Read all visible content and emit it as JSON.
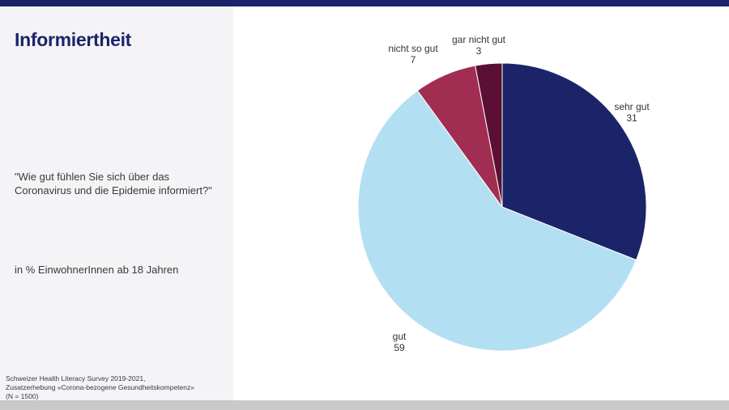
{
  "slide": {
    "title": "Informiertheit",
    "question_line1": "\"Wie gut fühlen Sie sich über das",
    "question_line2": "Coronavirus und die Epidemie informiert?\"",
    "unit_note": "in % EinwohnerInnen ab 18 Jahren",
    "source_line1": "Schweizer Health Literacy Survey 2019-2021,",
    "source_line2": "Zusatzerhebung «Corona-bezogene Gesundheitskompetenz»",
    "source_line3": "(N = 1500)"
  },
  "colors": {
    "header_bar": "#1b2469",
    "title": "#1b2469",
    "left_panel": "#f4f3f6"
  },
  "chart_data": {
    "type": "pie",
    "title": "",
    "start": "12 o'clock, clockwise",
    "slices": [
      {
        "label": "sehr gut",
        "value": 31,
        "color": "#1b2469"
      },
      {
        "label": "gut",
        "value": 59,
        "color": "#b3dff3"
      },
      {
        "label": "nicht so gut",
        "value": 7,
        "color": "#a12d52"
      },
      {
        "label": "gar nicht gut",
        "value": 3,
        "color": "#5b0f35"
      }
    ]
  }
}
